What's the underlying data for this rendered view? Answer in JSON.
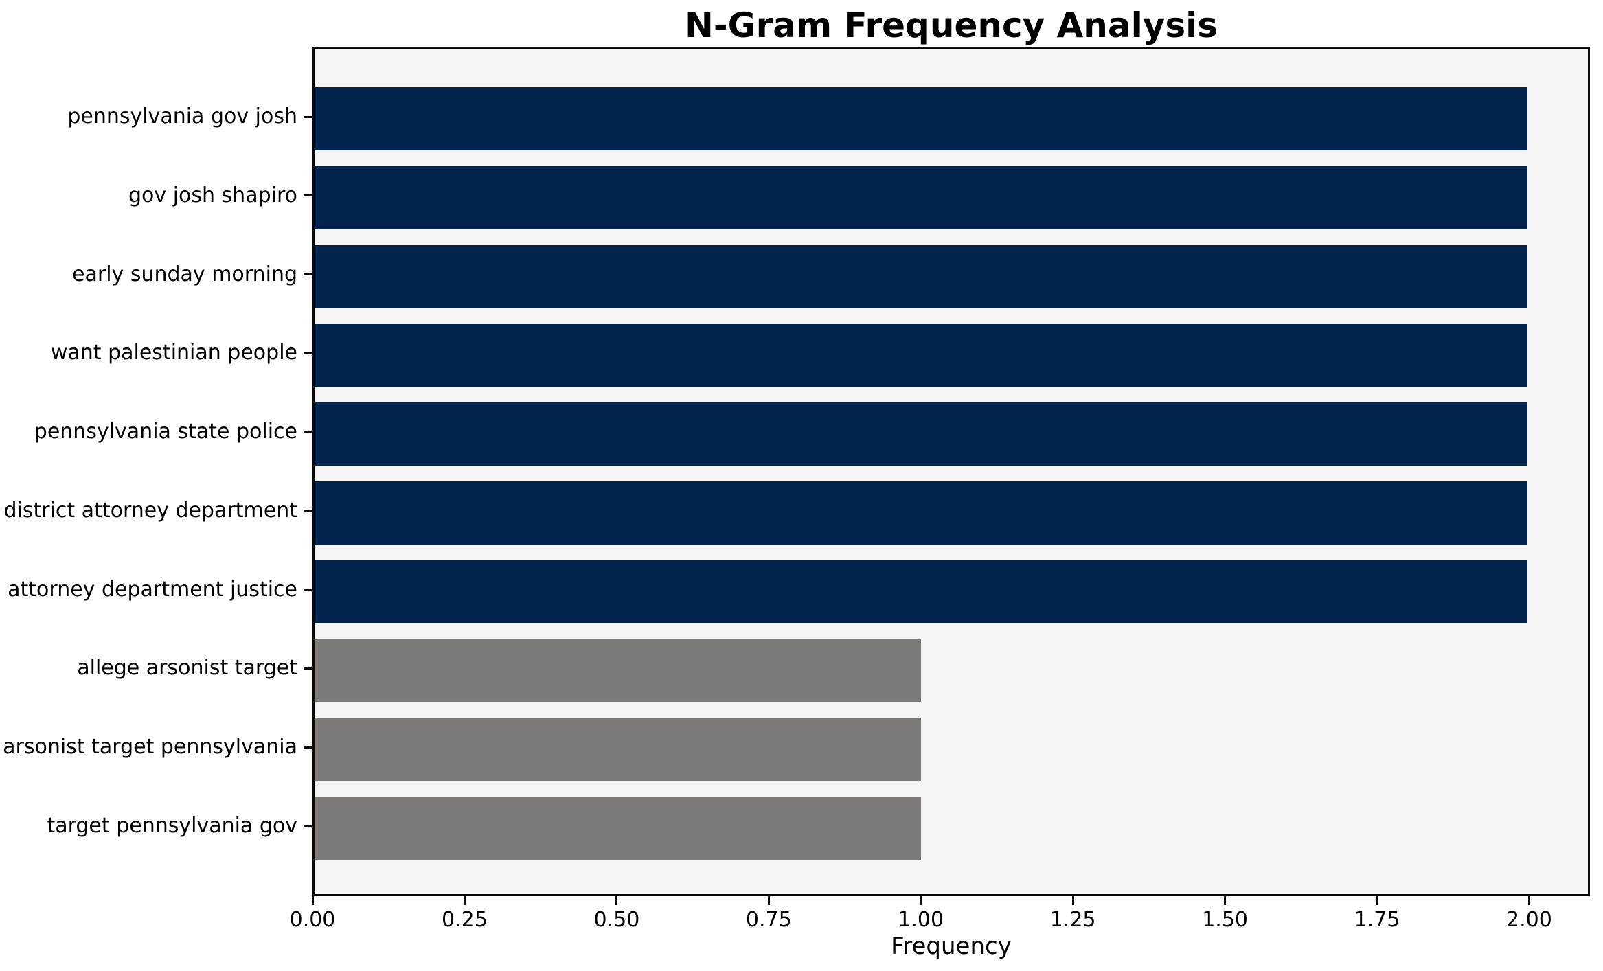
{
  "chart_data": {
    "type": "bar",
    "orientation": "horizontal",
    "title": "N-Gram Frequency Analysis",
    "xlabel": "Frequency",
    "ylabel": "",
    "categories": [
      "pennsylvania gov josh",
      "gov josh shapiro",
      "early sunday morning",
      "want palestinian people",
      "pennsylvania state police",
      "district attorney department",
      "attorney department justice",
      "allege arsonist target",
      "arsonist target pennsylvania",
      "target pennsylvania gov"
    ],
    "values": [
      2,
      2,
      2,
      2,
      2,
      2,
      2,
      1,
      1,
      1
    ],
    "bar_colors": [
      "#02234c",
      "#02234c",
      "#02234c",
      "#02234c",
      "#02234c",
      "#02234c",
      "#02234c",
      "#7b7a77",
      "#7b7a77",
      "#7b7a77"
    ],
    "xlim": [
      0,
      2.1
    ],
    "xticks": [
      0,
      0.25,
      0.5,
      0.75,
      1.0,
      1.25,
      1.5,
      1.75,
      2.0
    ],
    "xtick_labels": [
      "0.00",
      "0.25",
      "0.50",
      "0.75",
      "1.00",
      "1.25",
      "1.50",
      "1.75",
      "2.00"
    ],
    "grid": "off",
    "legend": "none",
    "plot_background": "#f5f5f5",
    "figure_background": "#ffffff",
    "colors": {
      "high_frequency_bar": "#02234c",
      "low_frequency_bar": "#7b7a77",
      "axis": "#0a0a0a",
      "text": "#000000"
    }
  }
}
